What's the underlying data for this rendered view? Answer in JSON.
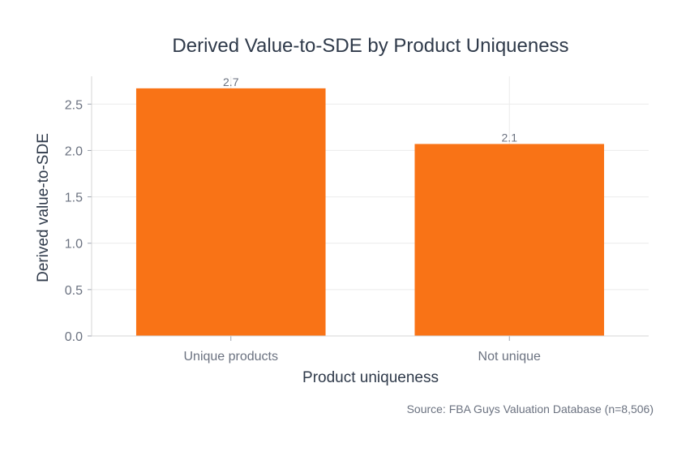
{
  "chart_data": {
    "type": "bar",
    "title": "Derived Value-to-SDE by Product Uniqueness",
    "xlabel": "Product uniqueness",
    "ylabel": "Derived value-to-SDE",
    "categories": [
      "Unique products",
      "Not unique"
    ],
    "values": [
      2.67,
      2.07
    ],
    "data_labels": [
      "2.7",
      "2.1"
    ],
    "ylim": [
      0,
      2.8
    ],
    "yticks": [
      0.0,
      0.5,
      1.0,
      1.5,
      2.0,
      2.5
    ],
    "ytick_labels": [
      "0.0",
      "0.5",
      "1.0",
      "1.5",
      "2.0",
      "2.5"
    ],
    "grid": true,
    "bar_color": "#f97316",
    "source": "Source: FBA Guys Valuation Database (n=8,506)"
  }
}
